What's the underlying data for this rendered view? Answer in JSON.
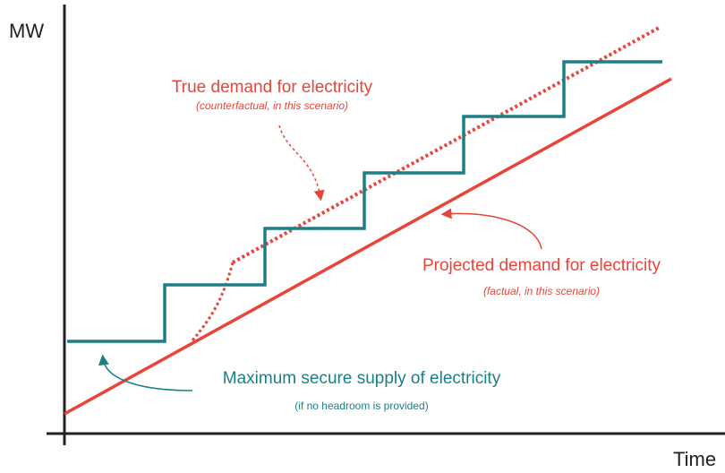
{
  "axes": {
    "y_label": "MW",
    "x_label": "Time"
  },
  "labels": {
    "true_demand": {
      "title": "True demand for electricity",
      "note": "(counterfactual, in this scenario)"
    },
    "projected_demand": {
      "title": "Projected demand for electricity",
      "note": "(factual, in this scenario)"
    },
    "secure_supply": {
      "title": "Maximum secure supply of electricity",
      "note": "(if no headroom is provided)"
    }
  }
}
